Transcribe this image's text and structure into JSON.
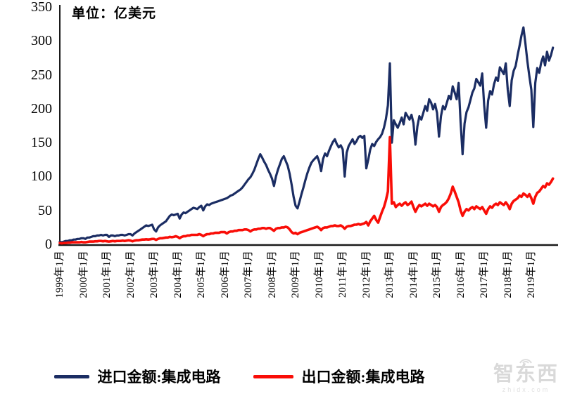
{
  "chart_data": {
    "type": "line",
    "title": "",
    "unit_label": "单位：亿美元",
    "xlabel": "",
    "ylabel": "",
    "ylim": [
      0,
      350
    ],
    "yticks": [
      0,
      50,
      100,
      150,
      200,
      250,
      300,
      350
    ],
    "grid": false,
    "legend_position": "bottom",
    "x_tick_labels": [
      "1999年1月",
      "2000年1月",
      "2001年1月",
      "2002年1月",
      "2003年1月",
      "2004年1月",
      "2005年1月",
      "2006年1月",
      "2007年1月",
      "2008年1月",
      "2009年1月",
      "2010年1月",
      "2011年1月",
      "2012年1月",
      "2013年1月",
      "2014年1月",
      "2015年1月",
      "2016年1月",
      "2017年1月",
      "2018年1月",
      "2019年1月"
    ],
    "x_frequency": "monthly",
    "x_range": [
      "1999年1月",
      "2019年12月"
    ],
    "series": [
      {
        "name": "进口金额:集成电路",
        "color": "#1b2d63",
        "values": [
          4,
          3,
          4,
          5,
          5,
          6,
          6,
          7,
          7,
          8,
          8,
          9,
          9,
          8,
          10,
          10,
          11,
          12,
          12,
          13,
          13,
          14,
          13,
          14,
          14,
          11,
          13,
          13,
          12,
          13,
          13,
          14,
          14,
          13,
          14,
          15,
          15,
          13,
          16,
          18,
          20,
          22,
          24,
          26,
          28,
          27,
          28,
          29,
          22,
          19,
          25,
          28,
          30,
          32,
          34,
          38,
          42,
          44,
          43,
          44,
          45,
          38,
          44,
          47,
          46,
          48,
          50,
          52,
          54,
          53,
          52,
          55,
          57,
          50,
          56,
          59,
          58,
          60,
          61,
          62,
          63,
          64,
          65,
          66,
          67,
          68,
          70,
          72,
          73,
          75,
          77,
          79,
          81,
          84,
          88,
          92,
          96,
          99,
          104,
          110,
          118,
          126,
          133,
          128,
          122,
          117,
          110,
          104,
          97,
          86,
          100,
          110,
          118,
          126,
          130,
          123,
          116,
          104,
          88,
          70,
          57,
          53,
          63,
          74,
          84,
          95,
          105,
          113,
          120,
          124,
          127,
          130,
          122,
          108,
          126,
          134,
          130,
          138,
          145,
          151,
          155,
          148,
          143,
          146,
          140,
          100,
          135,
          145,
          150,
          155,
          148,
          152,
          158,
          160,
          157,
          160,
          112,
          125,
          140,
          148,
          145,
          151,
          155,
          158,
          163,
          172,
          185,
          205,
          267,
          150,
          183,
          177,
          172,
          179,
          187,
          177,
          194,
          189,
          184,
          191,
          179,
          147,
          174,
          189,
          184,
          194,
          204,
          197,
          214,
          209,
          199,
          207,
          194,
          159,
          189,
          204,
          199,
          209,
          219,
          214,
          233,
          224,
          214,
          238,
          180,
          133,
          178,
          195,
          202,
          213,
          224,
          230,
          244,
          239,
          234,
          252,
          205,
          172,
          212,
          226,
          221,
          236,
          246,
          241,
          261,
          256,
          251,
          267,
          228,
          204,
          242,
          256,
          263,
          279,
          293,
          308,
          320,
          296,
          270,
          248,
          228,
          173,
          238,
          260,
          253,
          268,
          277,
          264,
          284,
          271,
          279,
          290
        ]
      },
      {
        "name": "出口金额:集成电路",
        "color": "#f90d07",
        "values": [
          2,
          1.5,
          2,
          2,
          2.5,
          2.5,
          3,
          3,
          3,
          3,
          3,
          3.5,
          3,
          3,
          3.5,
          4,
          4,
          4,
          4.5,
          4.5,
          5,
          5,
          4.5,
          5,
          4.5,
          4,
          4.5,
          5,
          4.5,
          5,
          5,
          5,
          5.5,
          5,
          5.5,
          6,
          5.5,
          4.5,
          5.5,
          6,
          6,
          6.5,
          7,
          7,
          7.5,
          7,
          7.5,
          8,
          8,
          6.5,
          8,
          9,
          9,
          9.5,
          10,
          10,
          11,
          10.5,
          11,
          12,
          11,
          9,
          11,
          12,
          12,
          13,
          13,
          14,
          14,
          14,
          14,
          15,
          14,
          12,
          14,
          15,
          15,
          16,
          16,
          17,
          17,
          17,
          18,
          18,
          18,
          16,
          18,
          19,
          19,
          20,
          20,
          21,
          21,
          21,
          22,
          22,
          21,
          19,
          21,
          22,
          22,
          23,
          23,
          24,
          24,
          23,
          24,
          24,
          22,
          20,
          23,
          24,
          24,
          25,
          25,
          26,
          25,
          22,
          18,
          16,
          17,
          15,
          17,
          18,
          19,
          20,
          21,
          22,
          23,
          24,
          25,
          26,
          24,
          21,
          24,
          25,
          25,
          26,
          27,
          27,
          28,
          27,
          27,
          28,
          26,
          23,
          26,
          27,
          27,
          28,
          29,
          29,
          30,
          29,
          30,
          31,
          33,
          28,
          34,
          38,
          42,
          36,
          32,
          40,
          48,
          55,
          65,
          78,
          158,
          60,
          62,
          55,
          58,
          60,
          57,
          60,
          62,
          58,
          60,
          63,
          55,
          48,
          54,
          58,
          56,
          58,
          60,
          57,
          60,
          58,
          56,
          58,
          55,
          48,
          55,
          58,
          60,
          63,
          68,
          75,
          85,
          78,
          70,
          62,
          50,
          42,
          48,
          52,
          50,
          53,
          55,
          52,
          56,
          54,
          52,
          55,
          50,
          45,
          52,
          56,
          54,
          58,
          60,
          58,
          62,
          60,
          58,
          62,
          58,
          52,
          60,
          64,
          66,
          68,
          72,
          70,
          75,
          73,
          70,
          74,
          68,
          60,
          70,
          76,
          78,
          82,
          86,
          84,
          90,
          88,
          92,
          97
        ]
      }
    ]
  },
  "legend": {
    "import_label": "进口金额:集成电路",
    "export_label": "出口金额:集成电路"
  },
  "watermark": {
    "text": "智东西",
    "subtext": "zhidx.com"
  },
  "colors": {
    "import_line": "#1b2d63",
    "export_line": "#f90d07",
    "axis": "#1a1a1a",
    "watermark": "#d9d9d9"
  }
}
